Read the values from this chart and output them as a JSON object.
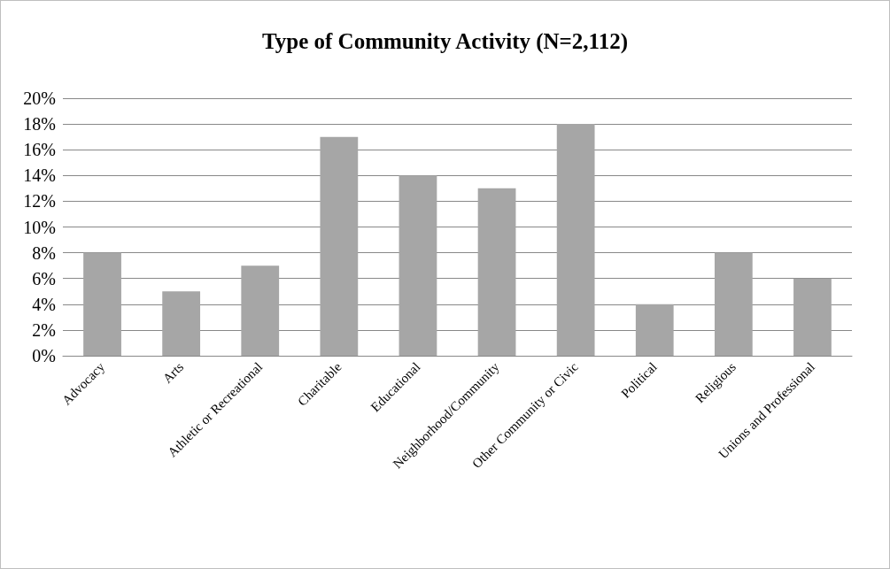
{
  "chart_data": {
    "type": "bar",
    "title": "Type of Community Activity (N=2,112)",
    "categories": [
      "Advocacy",
      "Arts",
      "Athletic or Recreational",
      "Charitable",
      "Educational",
      "Neighborhood/Community",
      "Other Community or Civic",
      "Political",
      "Religious",
      "Unions and Professional"
    ],
    "values": [
      8,
      5,
      7,
      17,
      14,
      13,
      18,
      4,
      8,
      6
    ],
    "color": "#a6a6a6",
    "ylim": [
      0,
      20
    ],
    "yticks": [
      {
        "value": 0,
        "label": "0%"
      },
      {
        "value": 2,
        "label": "2%"
      },
      {
        "value": 4,
        "label": "4%"
      },
      {
        "value": 6,
        "label": "6%"
      },
      {
        "value": 8,
        "label": "8%"
      },
      {
        "value": 10,
        "label": "10%"
      },
      {
        "value": 12,
        "label": "12%"
      },
      {
        "value": 14,
        "label": "14%"
      },
      {
        "value": 16,
        "label": "16%"
      },
      {
        "value": 18,
        "label": "18%"
      },
      {
        "value": 20,
        "label": "20%"
      }
    ],
    "grid": "y"
  }
}
